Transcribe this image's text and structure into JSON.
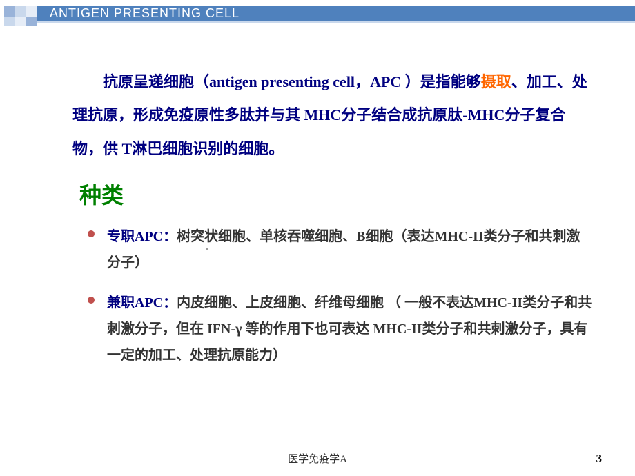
{
  "header": {
    "title": "ANTIGEN PRESENTING CELL",
    "stripe_color": "#4f81bd",
    "substripe_color": "#c9d8ec",
    "text_color": "#ffffff",
    "squares": [
      "#99b3d9",
      "#c9d8ec",
      "#e6edf7",
      "#c9d8ec",
      "#e6edf7",
      "#99b3d9"
    ]
  },
  "body": {
    "definition": {
      "seg1": "抗原呈递细胞（",
      "seg2_en": "antigen presenting cell",
      "seg3": "，",
      "seg4_en": "APC ",
      "seg5": "）是指能够",
      "seg6_orange": "摄取",
      "seg7": "、加工、处理抗原，形成免疫原性多肽并与其 ",
      "seg8_en": "MHC",
      "seg9": "分子结合成抗原肽",
      "seg10_en": "-MHC",
      "seg11": "分子复合物，供 ",
      "seg12_en": "T",
      "seg13": "淋巴细胞识别的细胞。",
      "text_color": "#000080",
      "orange_color": "#ff6600",
      "font_size": 22
    },
    "section_title": {
      "text": "种类",
      "color": "#008000",
      "font_size": 32
    },
    "bullets": [
      {
        "lead": "专职APC：",
        "rest": "树突状细胞、单核吞噬细胞、B细胞（表达MHC-II类分子和共刺激分子）"
      },
      {
        "lead": "兼职APC：",
        "rest": "内皮细胞、上皮细胞、纤维母细胞 （ 一般不表达MHC-II类分子和共刺激分子，但在 IFN-γ 等的作用下也可表达 MHC-II类分子和共刺激分子，具有一定的加工、处理抗原能力）"
      }
    ],
    "bullet_color": "#c0504d",
    "lead_color": "#000080"
  },
  "footer": {
    "course": "医学免疫学A",
    "page": "3"
  }
}
